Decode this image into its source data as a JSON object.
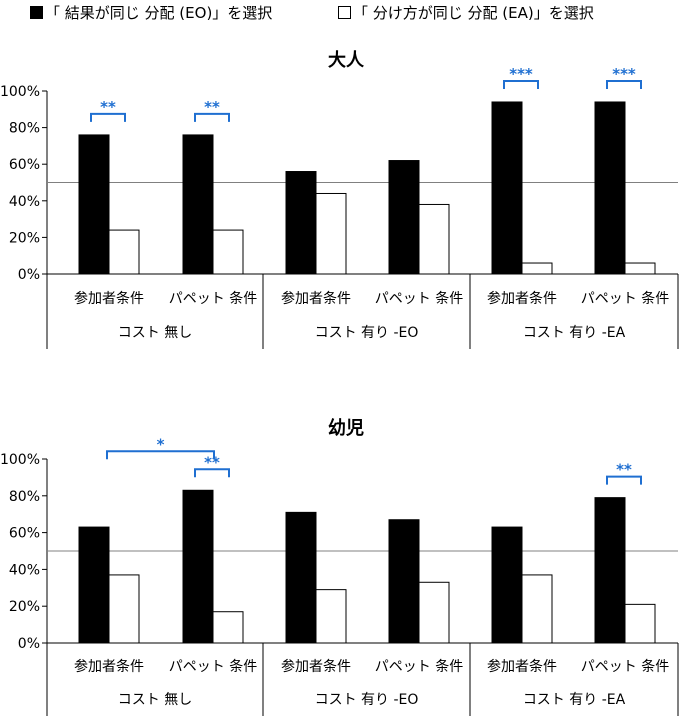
{
  "legend": [
    {
      "label": "「 結果が同じ 分配 (EO)」を選択",
      "fill": "#000000"
    },
    {
      "label": "「 分け方が同じ 分配 (EA)」を選択",
      "fill": "#ffffff"
    }
  ],
  "colors": {
    "bar_eo": "#000000",
    "bar_ea": "#ffffff",
    "significance": "#1f6fd1",
    "reference_line": "#808080"
  },
  "chart_data": [
    {
      "type": "bar",
      "title": "大人",
      "ylim": [
        0,
        100
      ],
      "yticks": [
        "0%",
        "20%",
        "40%",
        "60%",
        "80%",
        "100%"
      ],
      "reference_line": 50,
      "categories": [
        "参加者条件",
        "パペット 条件",
        "参加者条件",
        "パペット 条件",
        "参加者条件",
        "パペット 条件"
      ],
      "groups": [
        "コスト 無し",
        "コスト 有り -EO",
        "コスト 有り -EA"
      ],
      "series": [
        {
          "name": "「 結果が同じ 分配 (EO)」を選択",
          "values": [
            76,
            76,
            56,
            62,
            94,
            94
          ]
        },
        {
          "name": "「 分け方が同じ 分配 (EA)」を選択",
          "values": [
            24,
            24,
            44,
            38,
            6,
            6
          ]
        }
      ],
      "significance": [
        {
          "from": 0,
          "to": 0,
          "label": "**"
        },
        {
          "from": 1,
          "to": 1,
          "label": "**"
        },
        {
          "from": 4,
          "to": 4,
          "label": "***"
        },
        {
          "from": 5,
          "to": 5,
          "label": "***"
        }
      ]
    },
    {
      "type": "bar",
      "title": "幼児",
      "ylim": [
        0,
        100
      ],
      "yticks": [
        "0%",
        "20%",
        "40%",
        "60%",
        "80%",
        "100%"
      ],
      "reference_line": 50,
      "categories": [
        "参加者条件",
        "パペット 条件",
        "参加者条件",
        "パペット 条件",
        "参加者条件",
        "パペット 条件"
      ],
      "groups": [
        "コスト 無し",
        "コスト 有り -EO",
        "コスト 有り -EA"
      ],
      "series": [
        {
          "name": "「 結果が同じ 分配 (EO)」を選択",
          "values": [
            63,
            83,
            71,
            67,
            63,
            79
          ]
        },
        {
          "name": "「 分け方が同じ 分配 (EA)」を選択",
          "values": [
            37,
            17,
            29,
            33,
            37,
            21
          ]
        }
      ],
      "significance": [
        {
          "from": 0,
          "to": 1,
          "label": "*"
        },
        {
          "from": 1,
          "to": 1,
          "label": "**"
        },
        {
          "from": 5,
          "to": 5,
          "label": "**"
        }
      ]
    }
  ]
}
